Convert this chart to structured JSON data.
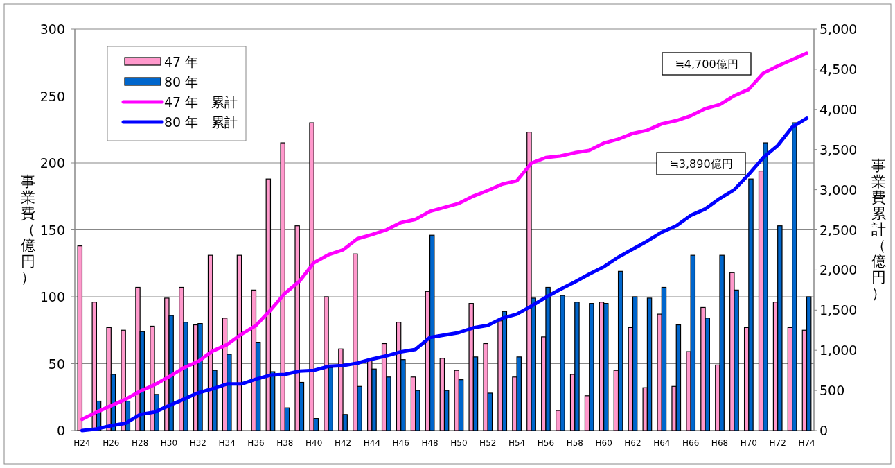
{
  "chart_data": {
    "type": "bar",
    "ylabel": "事業費（億円）",
    "y2label": "事業費累計（億円）",
    "categories": [
      "H24",
      null,
      "H26",
      null,
      "H28",
      null,
      "H30",
      null,
      "H32",
      null,
      "H34",
      null,
      "H36",
      null,
      "H38",
      null,
      "H40",
      null,
      "H42",
      null,
      "H44",
      null,
      "H46",
      null,
      "H48",
      null,
      "H50",
      null,
      "H52",
      null,
      "H54",
      null,
      "H56",
      null,
      "H58",
      null,
      "H60",
      null,
      "H62",
      null,
      "H64",
      null,
      "H66",
      null,
      "H68",
      null,
      "H70",
      null,
      "H72",
      null,
      "H74"
    ],
    "series": [
      {
        "name": "47 年",
        "color": "#ff99cc",
        "values": [
          138,
          96,
          77,
          75,
          107,
          78,
          99,
          107,
          79,
          131,
          84,
          131,
          105,
          188,
          215,
          153,
          230,
          100,
          61,
          132,
          53,
          65,
          81,
          40,
          104,
          54,
          45,
          95,
          65,
          82,
          40,
          223,
          70,
          15,
          42,
          26,
          96,
          45,
          77,
          32,
          87,
          33,
          59,
          92,
          49,
          118,
          77,
          194,
          96,
          77,
          75
        ]
      },
      {
        "name": "80 年",
        "color": "#0066cc",
        "values": [
          0,
          22,
          42,
          22,
          74,
          27,
          86,
          81,
          80,
          45,
          57,
          0,
          66,
          44,
          17,
          36,
          9,
          47,
          12,
          33,
          46,
          40,
          53,
          30,
          146,
          30,
          38,
          55,
          28,
          89,
          55,
          99,
          107,
          101,
          96,
          95,
          95,
          119,
          100,
          99,
          107,
          79,
          131,
          84,
          131,
          105,
          188,
          215,
          153,
          230,
          100
        ]
      },
      {
        "name": "47 年　累計",
        "type": "line",
        "axis": "y2",
        "color": "#ff00ff",
        "values": [
          140,
          230,
          310,
          390,
          490,
          570,
          670,
          780,
          860,
          990,
          1070,
          1200,
          1310,
          1500,
          1710,
          1860,
          2090,
          2190,
          2250,
          2390,
          2440,
          2500,
          2590,
          2630,
          2730,
          2780,
          2830,
          2920,
          2990,
          3070,
          3110,
          3330,
          3400,
          3420,
          3460,
          3490,
          3580,
          3630,
          3700,
          3740,
          3820,
          3860,
          3920,
          4010,
          4060,
          4170,
          4250,
          4450,
          4540,
          4620,
          4700
        ]
      },
      {
        "name": "80 年　累計",
        "type": "line",
        "axis": "y2",
        "color": "#0000ff",
        "values": [
          0,
          20,
          60,
          90,
          200,
          230,
          310,
          390,
          470,
          520,
          580,
          580,
          640,
          690,
          700,
          740,
          750,
          800,
          810,
          840,
          890,
          930,
          980,
          1010,
          1160,
          1190,
          1220,
          1280,
          1310,
          1400,
          1450,
          1550,
          1660,
          1760,
          1850,
          1950,
          2040,
          2160,
          2260,
          2360,
          2470,
          2550,
          2680,
          2760,
          2890,
          3000,
          3190,
          3400,
          3550,
          3780,
          3890
        ]
      }
    ],
    "ylim": [
      0,
      300
    ],
    "yticks": [
      0,
      50,
      100,
      150,
      200,
      250,
      300
    ],
    "y2lim": [
      0,
      5000
    ],
    "y2ticks": [
      0,
      {
        "value": 500,
        "label": "500"
      },
      {
        "value": 1000,
        "label": "1,000"
      },
      {
        "value": 1500,
        "label": "1,500"
      },
      {
        "value": 2000,
        "label": "2,000"
      },
      {
        "value": 2500,
        "label": "2,500"
      },
      {
        "value": 3000,
        "label": "3,000"
      },
      {
        "value": 3500,
        "label": "3,500"
      },
      {
        "value": 4000,
        "label": "4,000"
      },
      {
        "value": 4500,
        "label": "4,500"
      },
      {
        "value": 5000,
        "label": "5,000"
      }
    ],
    "annotations": [
      "≒4,700億円",
      "≒3,890億円"
    ],
    "grid": "y",
    "legend": "top left"
  }
}
